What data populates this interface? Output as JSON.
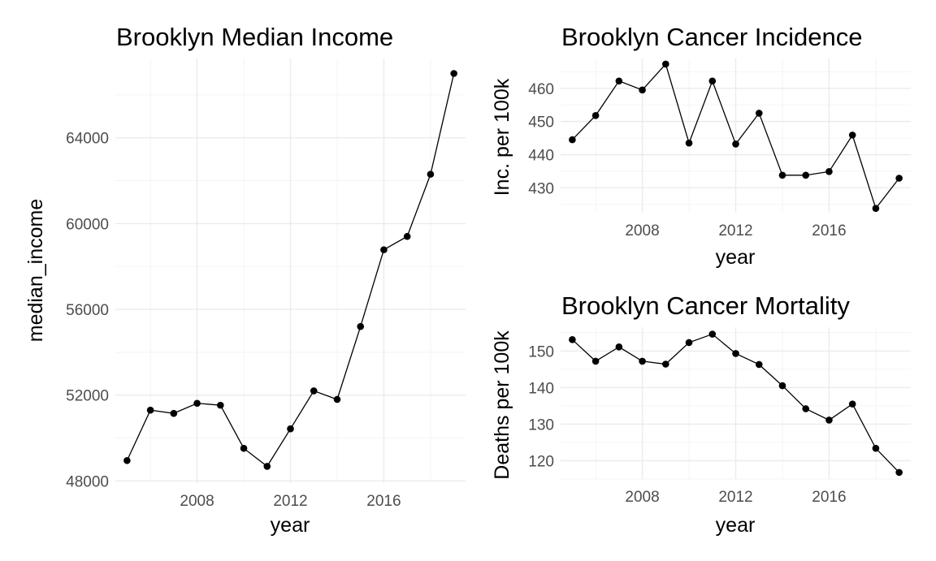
{
  "chart_data": [
    {
      "type": "line",
      "title": "Brooklyn Median Income",
      "xlabel": "year",
      "ylabel": "median_income",
      "x": [
        2005,
        2006,
        2007,
        2008,
        2009,
        2010,
        2011,
        2012,
        2013,
        2014,
        2015,
        2016,
        2017,
        2018,
        2019
      ],
      "values": [
        48950,
        51300,
        51150,
        51620,
        51530,
        49520,
        48680,
        50430,
        52200,
        51800,
        55200,
        58780,
        59400,
        62300,
        67000
      ],
      "xticks": [
        "2008",
        "2012",
        "2016"
      ],
      "yticks": [
        "48000",
        "52000",
        "56000",
        "60000",
        "64000"
      ],
      "xlim": [
        2004.5,
        2019.5
      ],
      "ylim": [
        47900,
        67700
      ],
      "grid": true
    },
    {
      "type": "line",
      "title": "Brooklyn Cancer Incidence",
      "xlabel": "year",
      "ylabel": "Inc. per 100k",
      "x": [
        2005,
        2006,
        2007,
        2008,
        2009,
        2010,
        2011,
        2012,
        2013,
        2014,
        2015,
        2016,
        2017,
        2018,
        2019
      ],
      "values": [
        444.5,
        451.8,
        462.2,
        459.5,
        467.3,
        443.5,
        462.2,
        443.2,
        452.5,
        433.8,
        433.8,
        434.9,
        445.9,
        423.8,
        432.9
      ],
      "xticks": [
        "2008",
        "2012",
        "2016"
      ],
      "yticks": [
        "430",
        "440",
        "450",
        "460"
      ],
      "xlim": [
        2004.5,
        2019.5
      ],
      "ylim": [
        422.5,
        469.0
      ],
      "grid": true
    },
    {
      "type": "line",
      "title": "Brooklyn Cancer Mortality",
      "xlabel": "year",
      "ylabel": "Deaths per 100k",
      "x": [
        2005,
        2006,
        2007,
        2008,
        2009,
        2010,
        2011,
        2012,
        2013,
        2014,
        2015,
        2016,
        2017,
        2018,
        2019
      ],
      "values": [
        153.1,
        147.2,
        151.1,
        147.2,
        146.4,
        152.3,
        154.6,
        149.3,
        146.3,
        140.5,
        134.2,
        131.1,
        135.5,
        123.4,
        116.8
      ],
      "xticks": [
        "2008",
        "2012",
        "2016"
      ],
      "yticks": [
        "120",
        "130",
        "140",
        "150"
      ],
      "xlim": [
        2004.5,
        2019.5
      ],
      "ylim": [
        115.0,
        156.5
      ],
      "grid": true
    }
  ]
}
